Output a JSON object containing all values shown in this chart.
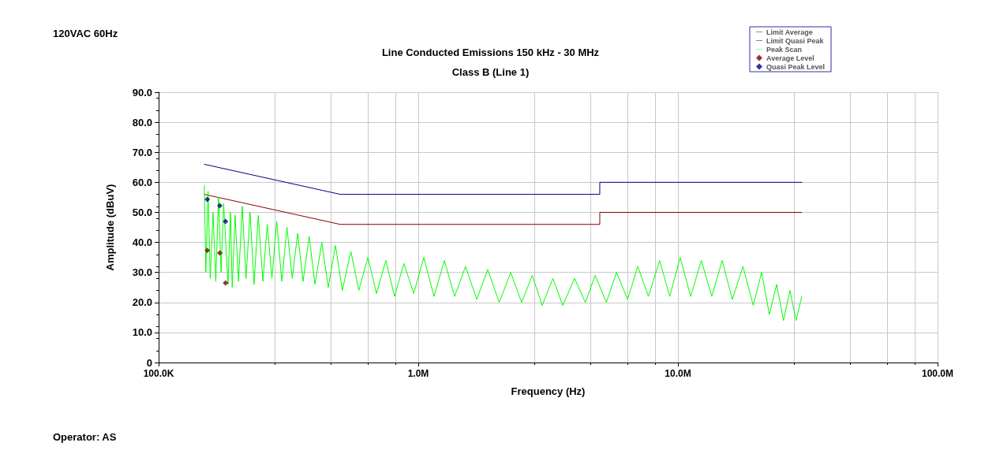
{
  "chart_data": {
    "type": "line",
    "title": "Line Conducted Emissions 150 kHz - 30 MHz",
    "subtitle": "Class B (Line 1)",
    "xlabel": "Frequency (Hz)",
    "ylabel": "Amplitude (dBuV)",
    "annotations": [
      "120VAC 60Hz",
      "Operator: AS"
    ],
    "log": "x",
    "xlim": [
      100000,
      100000000
    ],
    "xticks": [
      {
        "value": 100000,
        "label": "100.0K"
      },
      {
        "value": 1000000,
        "label": "1.0M"
      },
      {
        "value": 10000000,
        "label": "10.0M"
      },
      {
        "value": 100000000,
        "label": "100.0M"
      }
    ],
    "ylim": [
      0,
      90
    ],
    "yticks": [
      {
        "value": 0,
        "label": "0"
      },
      {
        "value": 10,
        "label": "10.0"
      },
      {
        "value": 20,
        "label": "20.0"
      },
      {
        "value": 30,
        "label": "30.0"
      },
      {
        "value": 40,
        "label": "40.0"
      },
      {
        "value": 50,
        "label": "50.0"
      },
      {
        "value": 60,
        "label": "60.0"
      },
      {
        "value": 70,
        "label": "70.0"
      },
      {
        "value": 80,
        "label": "80.0"
      },
      {
        "value": 90,
        "label": "90.0"
      }
    ],
    "grid": true,
    "legend": "top right",
    "series": [
      {
        "name": "Limit Average",
        "color": "#800000",
        "x": [
          150000,
          500000,
          5000000,
          5000000,
          30000000
        ],
        "values": [
          56,
          46,
          46,
          50,
          50
        ]
      },
      {
        "name": "Limit Quasi Peak",
        "color": "#000080",
        "x": [
          150000,
          500000,
          5000000,
          5000000,
          30000000
        ],
        "values": [
          66,
          56,
          56,
          60,
          60
        ]
      },
      {
        "name": "Peak Scan",
        "color": "#00ff00",
        "x": [
          150000,
          152000,
          155000,
          158000,
          162000,
          166000,
          170000,
          174000,
          178000,
          185000,
          189000,
          192000,
          197000,
          203000,
          210000,
          217000,
          225000,
          233000,
          242000,
          252000,
          262000,
          273000,
          285000,
          298000,
          312000,
          327000,
          343000,
          360000,
          380000,
          400000,
          425000,
          450000,
          480000,
          510000,
          550000,
          590000,
          640000,
          690000,
          750000,
          810000,
          880000,
          960000,
          1050000,
          1150000,
          1260000,
          1380000,
          1520000,
          1680000,
          1850000,
          2050000,
          2270000,
          2500000,
          2750000,
          3000000,
          3300000,
          3600000,
          4000000,
          4400000,
          4800000,
          5300000,
          5800000,
          6400000,
          7000000,
          7700000,
          8500000,
          9300000,
          10200000,
          11200000,
          12300000,
          13500000,
          14800000,
          16200000,
          17800000,
          19500000,
          21000000,
          22500000,
          24000000,
          25500000,
          27000000,
          28500000,
          30000000
        ],
        "values": [
          59,
          30,
          57,
          28,
          50,
          27,
          55,
          30,
          53,
          26,
          50,
          25,
          49,
          27,
          52,
          28,
          50,
          26,
          49,
          27,
          46,
          28,
          47,
          27,
          45,
          28,
          43,
          27,
          42,
          26,
          40,
          25,
          39,
          24,
          37,
          24,
          35,
          23,
          34,
          22,
          33,
          23,
          35,
          22,
          34,
          22,
          32,
          21,
          31,
          20,
          30,
          20,
          29,
          19,
          28,
          19,
          28,
          20,
          29,
          20,
          30,
          21,
          32,
          22,
          34,
          22,
          35,
          22,
          34,
          22,
          34,
          21,
          32,
          19,
          30,
          16,
          26,
          14,
          24,
          14,
          22
        ]
      },
      {
        "name": "Average Level",
        "type": "scatter",
        "marker": "diamond",
        "color": "#800000",
        "x": [
          154000,
          172000,
          181000
        ],
        "values": [
          37.3,
          36.5,
          26.5
        ]
      },
      {
        "name": "Quasi Peak Level",
        "type": "scatter",
        "marker": "diamond",
        "color": "#000080",
        "x": [
          154000,
          172000,
          181000
        ],
        "values": [
          54.3,
          52.2,
          47.0
        ]
      }
    ]
  }
}
